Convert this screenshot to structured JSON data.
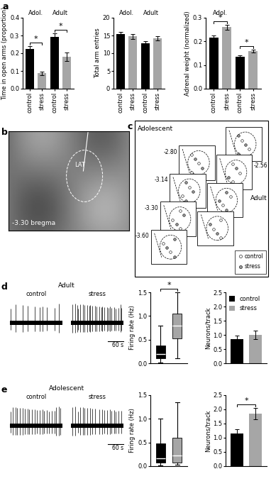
{
  "figure": {
    "panel_labels": [
      "a",
      "b",
      "c",
      "d",
      "e"
    ],
    "histology": {
      "region": "LAT",
      "bregma": "-3.30 bregma"
    },
    "atlas": {
      "columns": [
        {
          "label": "Adolescent",
          "levels": [
            "-2.80",
            "-3.14",
            "-3.30",
            "-3.60"
          ]
        },
        {
          "label": "Adult",
          "levels": [
            "-2.56"
          ]
        }
      ],
      "legend": [
        {
          "name": "control",
          "color": "#ffffff"
        },
        {
          "name": "stress",
          "color": "#9a9a9a"
        }
      ]
    },
    "traces": [
      {
        "title": "Adult",
        "conditions": [
          "control",
          "stress"
        ],
        "scale_bar": "60 s"
      },
      {
        "title": "Adolescent",
        "conditions": [
          "control",
          "stress"
        ],
        "scale_bar": "60 s"
      }
    ]
  },
  "chart_data": [
    {
      "type": "bar",
      "ylabel": "Time in open arms (proportion)",
      "categories": [
        "control",
        "stress",
        "control",
        "stress"
      ],
      "group_labels": [
        "Adol.",
        "Adult"
      ],
      "values": [
        0.225,
        0.088,
        0.292,
        0.18
      ],
      "errors": [
        0.015,
        0.01,
        0.02,
        0.025
      ],
      "colors": [
        "#000000",
        "#a6a6a6",
        "#000000",
        "#a6a6a6"
      ],
      "ylim": [
        0,
        0.4
      ],
      "yticks": [
        {
          "value": 0,
          "label": "0.0"
        },
        0.1,
        0.2,
        0.3,
        0.4
      ],
      "significance": [
        {
          "pair": [
            0,
            1
          ],
          "label": "*"
        },
        {
          "pair": [
            2,
            3
          ],
          "label": "*"
        }
      ]
    },
    {
      "type": "bar",
      "ylabel": "Total arm entries",
      "categories": [
        "control",
        "stress",
        "control",
        "stress"
      ],
      "group_labels": [
        "Adol.",
        "Adult"
      ],
      "values": [
        15.4,
        14.8,
        12.9,
        14.2
      ],
      "errors": [
        0.6,
        0.7,
        0.6,
        0.6
      ],
      "colors": [
        "#000000",
        "#a6a6a6",
        "#000000",
        "#a6a6a6"
      ],
      "ylim": [
        0,
        20
      ],
      "yticks": [
        0,
        5,
        10,
        15,
        20
      ]
    },
    {
      "type": "bar",
      "ylabel": "Adrenal weight (normalized)",
      "categories": [
        "control",
        "stress",
        "control",
        "stress"
      ],
      "group_labels": [
        "Adol.",
        null
      ],
      "values": [
        0.215,
        0.26,
        0.135,
        0.16
      ],
      "errors": [
        0.01,
        0.01,
        0.006,
        0.006
      ],
      "colors": [
        "#000000",
        "#a6a6a6",
        "#000000",
        "#a6a6a6"
      ],
      "ylim": [
        0,
        0.3
      ],
      "yticks": [
        {
          "value": 0,
          "label": "0.0"
        },
        0.1,
        0.2,
        0.3
      ],
      "significance": [
        {
          "pair": [
            0,
            1
          ],
          "label": "*"
        },
        {
          "pair": [
            2,
            3
          ],
          "label": "*"
        }
      ]
    },
    {
      "type": "box",
      "ylabel": "Firing rate (Hz)",
      "stats": [
        {
          "whislo": 0.02,
          "q1": 0.1,
          "med": 0.2,
          "q3": 0.38,
          "whishi": 0.8
        },
        {
          "whislo": 0.1,
          "q1": 0.52,
          "med": 0.8,
          "q3": 1.05,
          "whishi": 1.5
        }
      ],
      "colors": [
        "#000000",
        "#a6a6a6"
      ],
      "tick_labels": "y",
      "ylim": [
        0,
        1.5
      ],
      "yticks": [
        {
          "value": 0,
          "label": "0.0"
        },
        0.5,
        {
          "value": 1,
          "label": "1.0"
        },
        1.5
      ],
      "significance": [
        {
          "pair": [
            0,
            1
          ],
          "label": "*"
        }
      ]
    },
    {
      "type": "bar",
      "ylabel": "Neurons/track",
      "categories": [
        "control",
        "stress"
      ],
      "values": [
        0.85,
        1.0
      ],
      "errors": [
        0.12,
        0.15
      ],
      "colors": [
        "#000000",
        "#a6a6a6"
      ],
      "tick_labels": "y",
      "legend": "upper left",
      "ylim": [
        0,
        2.5
      ],
      "yticks": [
        {
          "value": 0,
          "label": "0.0"
        },
        0.5,
        {
          "value": 1,
          "label": "1.0"
        },
        1.5,
        {
          "value": 2,
          "label": "2.0"
        },
        2.5
      ]
    },
    {
      "type": "box",
      "ylabel": "Firing rate (Hz)",
      "stats": [
        {
          "whislo": 0.02,
          "q1": 0.08,
          "med": 0.17,
          "q3": 0.48,
          "whishi": 1.0
        },
        {
          "whislo": 0.03,
          "q1": 0.08,
          "med": 0.22,
          "q3": 0.6,
          "whishi": 1.35
        }
      ],
      "colors": [
        "#000000",
        "#a6a6a6"
      ],
      "tick_labels": "y",
      "ylim": [
        0,
        1.5
      ],
      "yticks": [
        {
          "value": 0,
          "label": "0.0"
        },
        0.5,
        {
          "value": 1,
          "label": "1.0"
        },
        1.5
      ]
    },
    {
      "type": "bar",
      "ylabel": "Neurons/track",
      "values": [
        1.15,
        1.85
      ],
      "errors": [
        0.15,
        0.2
      ],
      "colors": [
        "#000000",
        "#a6a6a6"
      ],
      "tick_labels": "y",
      "ylim": [
        0,
        2.5
      ],
      "yticks": [
        {
          "value": 0,
          "label": "0.0"
        },
        0.5,
        {
          "value": 1,
          "label": "1.0"
        },
        1.5,
        {
          "value": 2,
          "label": "2.0"
        },
        2.5
      ],
      "significance": [
        {
          "pair": [
            0,
            1
          ],
          "label": "*"
        }
      ]
    }
  ]
}
